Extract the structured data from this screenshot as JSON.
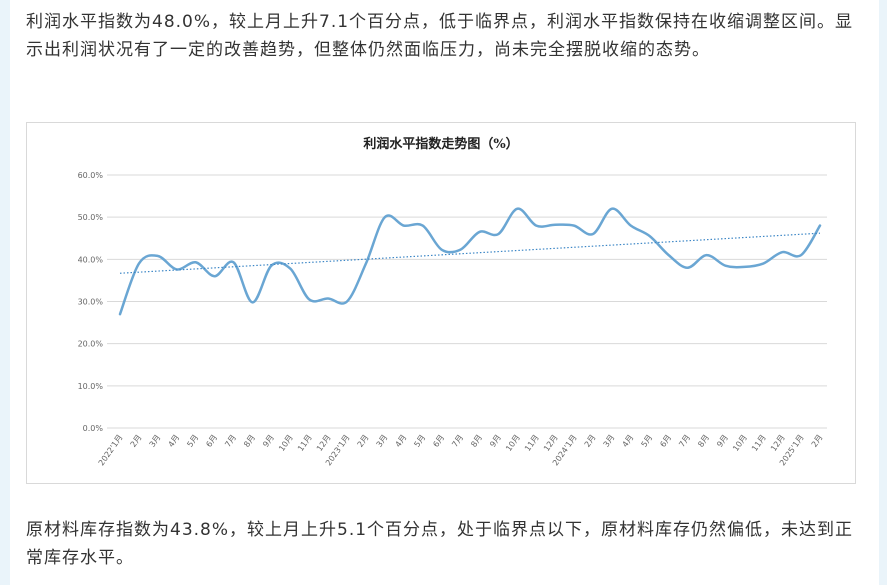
{
  "paragraph_1": "利润水平指数为48.0%，较上月上升7.1个百分点，低于临界点，利润水平指数保持在收缩调整区间。显示出利润状况有了一定的改善趋势，但整体仍然面临压力，尚未完全摆脱收缩的态势。",
  "paragraph_2": "原材料库存指数为43.8%，较上月上升5.1个百分点，处于临界点以下，原材料库存仍然偏低，未达到正常库存水平。",
  "colors": {
    "line": "#6aa6d3",
    "trend": "#3d87c6",
    "grid": "#d9d9d9",
    "side_bars": "#eaf4fa"
  },
  "chart_data": {
    "type": "line",
    "title": "利润水平指数走势图（%）",
    "xlabel": "",
    "ylabel": "",
    "ylim": [
      0,
      60
    ],
    "yticks": [
      "0.0%",
      "10.0%",
      "20.0%",
      "30.0%",
      "40.0%",
      "50.0%",
      "60.0%"
    ],
    "grid": true,
    "legend": "none",
    "categories": [
      "2022'1月",
      "2月",
      "3月",
      "4月",
      "5月",
      "6月",
      "7月",
      "8月",
      "9月",
      "10月",
      "11月",
      "12月",
      "2023'1月",
      "2月",
      "3月",
      "4月",
      "5月",
      "6月",
      "7月",
      "8月",
      "9月",
      "10月",
      "11月",
      "12月",
      "2024'1月",
      "2月",
      "3月",
      "4月",
      "5月",
      "6月",
      "7月",
      "8月",
      "9月",
      "10月",
      "11月",
      "12月",
      "2025'1月",
      "2月"
    ],
    "series": [
      {
        "values": [
          27.0,
          39.0,
          40.8,
          37.6,
          39.3,
          36.0,
          39.3,
          29.8,
          38.5,
          37.8,
          30.5,
          30.7,
          30.0,
          39.0,
          50.0,
          48.0,
          48.0,
          42.3,
          42.3,
          46.5,
          46.0,
          52.0,
          48.0,
          48.2,
          48.0,
          46.0,
          52.0,
          48.0,
          45.5,
          41.0,
          38.0,
          41.0,
          38.5,
          38.2,
          39.0,
          41.7,
          41.0,
          48.0
        ]
      }
    ],
    "trendline": {
      "style": "dotted",
      "start": 36.7,
      "end": 46.2
    }
  }
}
